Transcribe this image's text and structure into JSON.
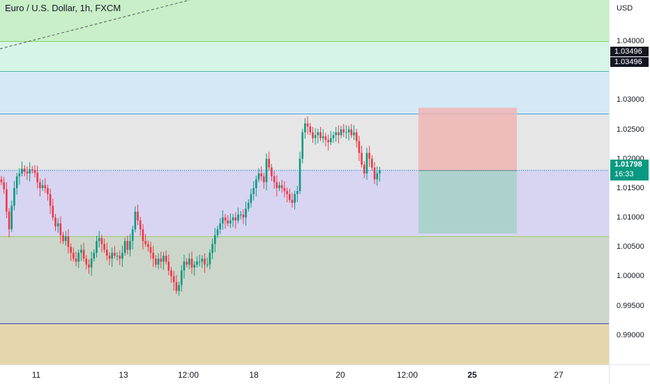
{
  "symbol_title": "Euro / U.S. Dollar, 1h, FXCM",
  "currency": "USD",
  "price_axis": {
    "labels": [
      "1.04000",
      "1.03000",
      "1.02500",
      "1.02000",
      "1.01500",
      "1.01000",
      "1.00500",
      "1.00000",
      "0.99500",
      "0.99000"
    ]
  },
  "time_axis": {
    "labels": [
      "11",
      "13",
      "12:00",
      "18",
      "20",
      "12:00",
      "25",
      "27"
    ]
  },
  "price_tags": {
    "upper_1": "1.03496",
    "upper_2": "1.03496",
    "current_price": "1.01798",
    "countdown": "16:33"
  },
  "zones": [
    {
      "name": "green",
      "top": 1.047,
      "bottom": 1.04,
      "color": "#c8efc8"
    },
    {
      "name": "mint",
      "top": 1.04,
      "bottom": 1.03496,
      "color": "#d6f5e6"
    },
    {
      "name": "blue",
      "top": 1.03496,
      "bottom": 1.0277,
      "color": "#d4e9f5"
    },
    {
      "name": "gray",
      "top": 1.0277,
      "bottom": 1.0182,
      "color": "#e6e6e6"
    },
    {
      "name": "lavender",
      "top": 1.0182,
      "bottom": 1.0068,
      "color": "#d7d5f2"
    },
    {
      "name": "sage",
      "top": 1.0068,
      "bottom": 0.992,
      "color": "#cdd6ca"
    },
    {
      "name": "tan",
      "top": 0.992,
      "bottom": 0.985,
      "color": "#e6d6ac"
    }
  ],
  "zone_lines": [
    {
      "price": 1.04,
      "color": "#7ccf6f"
    },
    {
      "price": 1.03496,
      "color": "#4fb3a1"
    },
    {
      "price": 1.0277,
      "color": "#4a9fd8"
    },
    {
      "price": 1.0068,
      "color": "#9ccf63"
    },
    {
      "price": 0.992,
      "color": "#3d3dbb"
    }
  ],
  "position": {
    "entry": 1.01798,
    "stop": 1.02868,
    "target": 1.00728,
    "stop_color": "#f0b4b4",
    "target_color": "#a6d1c7"
  },
  "chart_data": {
    "type": "candlestick",
    "title": "Euro / U.S. Dollar, 1h, FXCM",
    "xlabel": "",
    "ylabel": "USD",
    "ylim": [
      0.985,
      1.047
    ],
    "x_ticks": [
      "11",
      "13",
      "12:00",
      "18",
      "20",
      "12:00",
      "25",
      "27"
    ],
    "close_prices": [
      1.016,
      1.0148,
      1.011,
      1.008,
      1.012,
      1.015,
      1.017,
      1.0175,
      1.0183,
      1.0178,
      1.0175,
      1.0182,
      1.018,
      1.0176,
      1.016,
      1.015,
      1.0155,
      1.015,
      1.014,
      1.012,
      1.01,
      1.0085,
      1.009,
      1.007,
      1.006,
      1.0068,
      1.005,
      1.004,
      1.003,
      1.0025,
      1.004,
      1.0045,
      1.003,
      1.002,
      1.0015,
      1.003,
      1.004,
      1.006,
      1.0065,
      1.0055,
      1.0045,
      1.0035,
      1.003,
      1.004,
      1.0035,
      1.0035,
      1.003,
      1.004,
      1.006,
      1.0045,
      1.006,
      1.008,
      1.011,
      1.0095,
      1.008,
      1.006,
      1.0055,
      1.005,
      1.004,
      1.003,
      1.002,
      1.003,
      1.0025,
      1.0035,
      1.0025,
      1.001,
      1.0,
      0.999,
      0.9975,
      0.9985,
      1.001,
      1.0025,
      1.002,
      1.003,
      1.0015,
      1.002,
      1.0025,
      1.0025,
      1.003,
      1.002,
      1.002,
      1.004,
      1.0055,
      1.007,
      1.008,
      1.009,
      1.01,
      1.0095,
      1.009,
      1.0095,
      1.01,
      1.0095,
      1.0105,
      1.0105,
      1.01,
      1.0115,
      1.0125,
      1.014,
      1.015,
      1.0165,
      1.0175,
      1.017,
      1.016,
      1.02,
      1.0185,
      1.017,
      1.016,
      1.015,
      1.0155,
      1.015,
      1.0145,
      1.014,
      1.013,
      1.0125,
      1.014,
      1.0145,
      1.02,
      1.0245,
      1.026,
      1.0255,
      1.0245,
      1.0235,
      1.024,
      1.0245,
      1.0235,
      1.0238,
      1.0232,
      1.0228,
      1.0235,
      1.024,
      1.0245,
      1.024,
      1.025,
      1.0245,
      1.0245,
      1.025,
      1.024,
      1.0245,
      1.023,
      1.021,
      1.019,
      1.0175,
      1.021,
      1.02,
      1.0185,
      1.0165,
      1.0175,
      1.018
    ]
  }
}
